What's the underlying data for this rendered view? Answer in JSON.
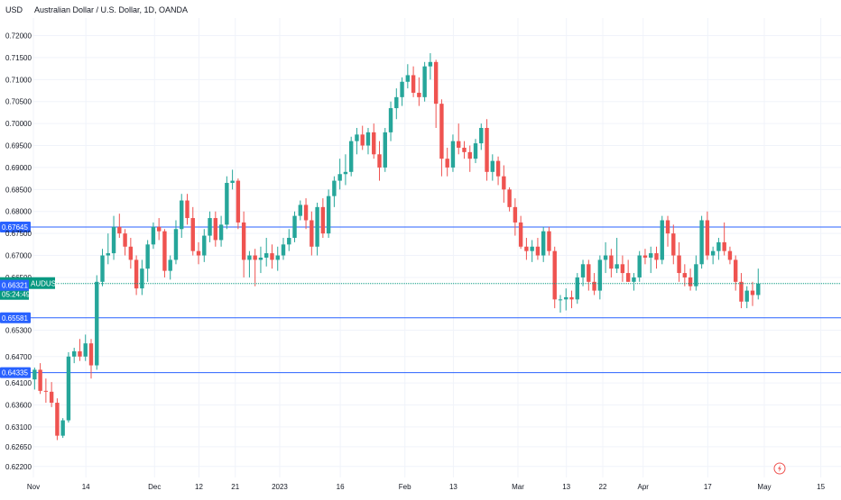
{
  "header": {
    "currency": "USD",
    "title": "Australian Dollar / U.S. Dollar, 1D, OANDA"
  },
  "colors": {
    "up": "#26a69a",
    "down": "#ef5350",
    "hline": "#2962ff",
    "current": "#089981",
    "grid": "#f0f3fa",
    "text": "#131722"
  },
  "icons": {
    "flash": "lightning-icon"
  },
  "chart_data": {
    "type": "candlestick",
    "symbol": "AUDUSD",
    "title": "Australian Dollar / U.S. Dollar, 1D, OANDA",
    "ylim": [
      0.6195,
      0.724
    ],
    "x_ticks": [
      {
        "label": "Nov",
        "day": 0
      },
      {
        "label": "14",
        "day": 13
      },
      {
        "label": "Dec",
        "day": 30
      },
      {
        "label": "12",
        "day": 41
      },
      {
        "label": "21",
        "day": 50
      },
      {
        "label": "2023",
        "day": 61
      },
      {
        "label": "16",
        "day": 76
      },
      {
        "label": "Feb",
        "day": 92
      },
      {
        "label": "13",
        "day": 104
      },
      {
        "label": "Mar",
        "day": 120
      },
      {
        "label": "13",
        "day": 132
      },
      {
        "label": "22",
        "day": 141
      },
      {
        "label": "Apr",
        "day": 151
      },
      {
        "label": "17",
        "day": 167
      },
      {
        "label": "May",
        "day": 181
      },
      {
        "label": "15",
        "day": 195
      }
    ],
    "y_ticks": [
      {
        "label": "0.72000",
        "value": 0.72
      },
      {
        "label": "0.71500",
        "value": 0.715
      },
      {
        "label": "0.71000",
        "value": 0.71
      },
      {
        "label": "0.70500",
        "value": 0.705
      },
      {
        "label": "0.70000",
        "value": 0.7
      },
      {
        "label": "0.69500",
        "value": 0.695
      },
      {
        "label": "0.69000",
        "value": 0.69
      },
      {
        "label": "0.68500",
        "value": 0.685
      },
      {
        "label": "0.68000",
        "value": 0.68
      },
      {
        "label": "0.67500",
        "value": 0.675
      },
      {
        "label": "0.67000",
        "value": 0.67
      },
      {
        "label": "0.66500",
        "value": 0.665
      },
      {
        "label": "0.65300",
        "value": 0.653
      },
      {
        "label": "0.64700",
        "value": 0.647
      },
      {
        "label": "0.64100",
        "value": 0.641
      },
      {
        "label": "0.63600",
        "value": 0.636
      },
      {
        "label": "0.63100",
        "value": 0.631
      },
      {
        "label": "0.62650",
        "value": 0.6265
      },
      {
        "label": "0.62200",
        "value": 0.622
      }
    ],
    "hlines": [
      {
        "label": "0.67645",
        "value": 0.67645
      },
      {
        "label": "0.65581",
        "value": 0.65581
      },
      {
        "label": "0.64335",
        "value": 0.64335
      }
    ],
    "current": {
      "price": 0.66361,
      "price_label": "0.66361",
      "symbol_label": "AUDUSD",
      "countdown": "05:24:49"
    },
    "second_price": {
      "label": "0.66321",
      "value": 0.66321
    },
    "candles": [
      [
        0.6418,
        0.6445,
        0.6395,
        0.644
      ],
      [
        0.644,
        0.6455,
        0.6385,
        0.6392
      ],
      [
        0.6392,
        0.642,
        0.6365,
        0.639
      ],
      [
        0.639,
        0.6412,
        0.6355,
        0.6365
      ],
      [
        0.6365,
        0.6375,
        0.628,
        0.629
      ],
      [
        0.629,
        0.633,
        0.6285,
        0.6325
      ],
      [
        0.6325,
        0.648,
        0.632,
        0.647
      ],
      [
        0.647,
        0.649,
        0.6455,
        0.6482
      ],
      [
        0.6482,
        0.651,
        0.646,
        0.647
      ],
      [
        0.647,
        0.652,
        0.646,
        0.65
      ],
      [
        0.65,
        0.651,
        0.642,
        0.645
      ],
      [
        0.645,
        0.6655,
        0.644,
        0.664
      ],
      [
        0.664,
        0.6715,
        0.663,
        0.67
      ],
      [
        0.67,
        0.675,
        0.668,
        0.6705
      ],
      [
        0.6705,
        0.679,
        0.669,
        0.6765
      ],
      [
        0.6765,
        0.6795,
        0.674,
        0.675
      ],
      [
        0.675,
        0.676,
        0.67,
        0.672
      ],
      [
        0.672,
        0.674,
        0.667,
        0.669
      ],
      [
        0.669,
        0.67,
        0.661,
        0.6625
      ],
      [
        0.6625,
        0.669,
        0.661,
        0.667
      ],
      [
        0.667,
        0.6735,
        0.664,
        0.6725
      ],
      [
        0.6725,
        0.6775,
        0.6715,
        0.6765
      ],
      [
        0.6765,
        0.6785,
        0.6735,
        0.6755
      ],
      [
        0.6755,
        0.676,
        0.665,
        0.6665
      ],
      [
        0.6665,
        0.67,
        0.6645,
        0.669
      ],
      [
        0.669,
        0.678,
        0.668,
        0.676
      ],
      [
        0.676,
        0.684,
        0.674,
        0.6825
      ],
      [
        0.6825,
        0.684,
        0.677,
        0.6785
      ],
      [
        0.6785,
        0.681,
        0.67,
        0.671
      ],
      [
        0.671,
        0.673,
        0.668,
        0.67
      ],
      [
        0.67,
        0.676,
        0.6685,
        0.6745
      ],
      [
        0.6745,
        0.68,
        0.673,
        0.6785
      ],
      [
        0.6785,
        0.68,
        0.672,
        0.6735
      ],
      [
        0.6735,
        0.679,
        0.672,
        0.677
      ],
      [
        0.677,
        0.688,
        0.676,
        0.6865
      ],
      [
        0.6865,
        0.6895,
        0.685,
        0.687
      ],
      [
        0.687,
        0.6875,
        0.676,
        0.6775
      ],
      [
        0.6775,
        0.68,
        0.665,
        0.669
      ],
      [
        0.669,
        0.671,
        0.665,
        0.67
      ],
      [
        0.67,
        0.6715,
        0.663,
        0.669
      ],
      [
        0.669,
        0.672,
        0.666,
        0.6695
      ],
      [
        0.6695,
        0.674,
        0.6675,
        0.6705
      ],
      [
        0.6705,
        0.6725,
        0.667,
        0.669
      ],
      [
        0.669,
        0.672,
        0.6665,
        0.67
      ],
      [
        0.67,
        0.674,
        0.669,
        0.6725
      ],
      [
        0.6725,
        0.676,
        0.671,
        0.674
      ],
      [
        0.674,
        0.68,
        0.673,
        0.679
      ],
      [
        0.679,
        0.6825,
        0.678,
        0.6815
      ],
      [
        0.6815,
        0.683,
        0.676,
        0.678
      ],
      [
        0.678,
        0.68,
        0.67,
        0.672
      ],
      [
        0.672,
        0.682,
        0.67,
        0.681
      ],
      [
        0.681,
        0.683,
        0.674,
        0.675
      ],
      [
        0.675,
        0.685,
        0.674,
        0.6835
      ],
      [
        0.6835,
        0.688,
        0.681,
        0.687
      ],
      [
        0.687,
        0.692,
        0.685,
        0.6885
      ],
      [
        0.6885,
        0.693,
        0.686,
        0.689
      ],
      [
        0.689,
        0.697,
        0.688,
        0.696
      ],
      [
        0.696,
        0.699,
        0.693,
        0.6975
      ],
      [
        0.6975,
        0.6995,
        0.694,
        0.695
      ],
      [
        0.695,
        0.699,
        0.693,
        0.698
      ],
      [
        0.698,
        0.7,
        0.692,
        0.693
      ],
      [
        0.693,
        0.696,
        0.687,
        0.69
      ],
      [
        0.69,
        0.699,
        0.689,
        0.698
      ],
      [
        0.698,
        0.705,
        0.696,
        0.7035
      ],
      [
        0.7035,
        0.708,
        0.701,
        0.706
      ],
      [
        0.706,
        0.7105,
        0.704,
        0.7095
      ],
      [
        0.7095,
        0.7135,
        0.708,
        0.711
      ],
      [
        0.711,
        0.713,
        0.706,
        0.707
      ],
      [
        0.707,
        0.7105,
        0.704,
        0.706
      ],
      [
        0.706,
        0.714,
        0.705,
        0.713
      ],
      [
        0.713,
        0.716,
        0.71,
        0.714
      ],
      [
        0.714,
        0.7145,
        0.699,
        0.7045
      ],
      [
        0.7045,
        0.7055,
        0.688,
        0.692
      ],
      [
        0.692,
        0.6945,
        0.688,
        0.69
      ],
      [
        0.69,
        0.6975,
        0.689,
        0.696
      ],
      [
        0.696,
        0.7,
        0.693,
        0.6945
      ],
      [
        0.6945,
        0.696,
        0.692,
        0.6935
      ],
      [
        0.6935,
        0.695,
        0.689,
        0.692
      ],
      [
        0.692,
        0.6965,
        0.691,
        0.6955
      ],
      [
        0.6955,
        0.7,
        0.694,
        0.699
      ],
      [
        0.699,
        0.701,
        0.687,
        0.689
      ],
      [
        0.689,
        0.693,
        0.687,
        0.6915
      ],
      [
        0.6915,
        0.6925,
        0.686,
        0.688
      ],
      [
        0.688,
        0.6905,
        0.682,
        0.685
      ],
      [
        0.685,
        0.6855,
        0.68,
        0.681
      ],
      [
        0.681,
        0.683,
        0.6745,
        0.6775
      ],
      [
        0.6775,
        0.679,
        0.6715,
        0.672
      ],
      [
        0.672,
        0.674,
        0.669,
        0.671
      ],
      [
        0.671,
        0.6735,
        0.6685,
        0.672
      ],
      [
        0.672,
        0.674,
        0.669,
        0.67
      ],
      [
        0.67,
        0.6765,
        0.6685,
        0.6755
      ],
      [
        0.6755,
        0.6765,
        0.67,
        0.671
      ],
      [
        0.671,
        0.672,
        0.658,
        0.66
      ],
      [
        0.66,
        0.661,
        0.657,
        0.66
      ],
      [
        0.66,
        0.6625,
        0.6575,
        0.6605
      ],
      [
        0.6605,
        0.662,
        0.658,
        0.66
      ],
      [
        0.66,
        0.666,
        0.659,
        0.665
      ],
      [
        0.665,
        0.669,
        0.663,
        0.668
      ],
      [
        0.668,
        0.669,
        0.662,
        0.664
      ],
      [
        0.664,
        0.666,
        0.661,
        0.662
      ],
      [
        0.662,
        0.67,
        0.66,
        0.669
      ],
      [
        0.669,
        0.673,
        0.666,
        0.67
      ],
      [
        0.67,
        0.6715,
        0.665,
        0.667
      ],
      [
        0.667,
        0.674,
        0.666,
        0.668
      ],
      [
        0.668,
        0.67,
        0.664,
        0.666
      ],
      [
        0.666,
        0.669,
        0.664,
        0.664
      ],
      [
        0.664,
        0.666,
        0.662,
        0.665
      ],
      [
        0.665,
        0.671,
        0.664,
        0.67
      ],
      [
        0.67,
        0.6715,
        0.668,
        0.6695
      ],
      [
        0.6695,
        0.672,
        0.666,
        0.6705
      ],
      [
        0.6705,
        0.672,
        0.667,
        0.669
      ],
      [
        0.669,
        0.679,
        0.668,
        0.678
      ],
      [
        0.678,
        0.679,
        0.672,
        0.675
      ],
      [
        0.675,
        0.677,
        0.668,
        0.67
      ],
      [
        0.67,
        0.673,
        0.664,
        0.666
      ],
      [
        0.666,
        0.668,
        0.663,
        0.665
      ],
      [
        0.665,
        0.667,
        0.662,
        0.663
      ],
      [
        0.663,
        0.67,
        0.662,
        0.668
      ],
      [
        0.668,
        0.679,
        0.667,
        0.678
      ],
      [
        0.678,
        0.68,
        0.669,
        0.67
      ],
      [
        0.67,
        0.672,
        0.668,
        0.671
      ],
      [
        0.671,
        0.674,
        0.669,
        0.673
      ],
      [
        0.673,
        0.6775,
        0.67,
        0.671
      ],
      [
        0.671,
        0.672,
        0.668,
        0.669
      ],
      [
        0.669,
        0.67,
        0.662,
        0.664
      ],
      [
        0.664,
        0.666,
        0.658,
        0.6595
      ],
      [
        0.6595,
        0.663,
        0.658,
        0.662
      ],
      [
        0.662,
        0.664,
        0.6585,
        0.661
      ],
      [
        0.661,
        0.667,
        0.66,
        0.6636
      ]
    ]
  }
}
